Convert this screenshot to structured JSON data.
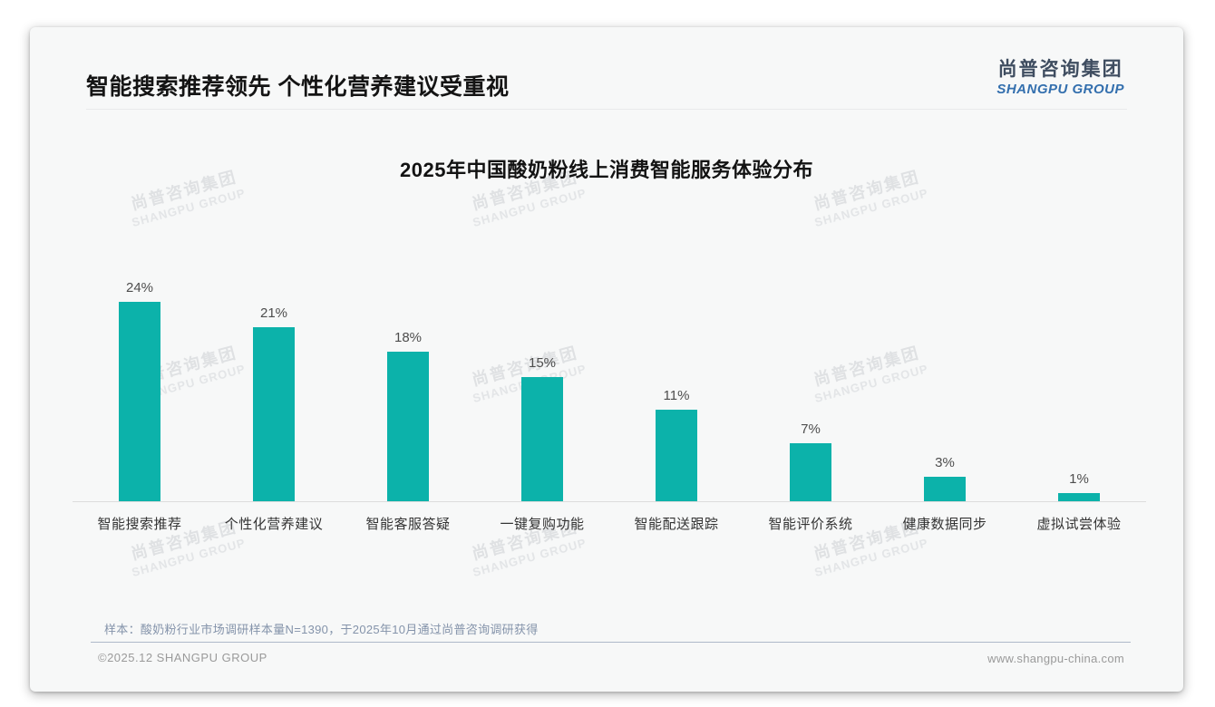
{
  "header": {
    "title": "智能搜索推荐领先 个性化营养建议受重视",
    "logo": {
      "cn": "尚普咨询集团",
      "en": "SHANGPU GROUP"
    }
  },
  "chart_data": {
    "type": "bar",
    "title": "2025年中国酸奶粉线上消费智能服务体验分布",
    "categories": [
      "智能搜索推荐",
      "个性化营养建议",
      "智能客服答疑",
      "一键复购功能",
      "智能配送跟踪",
      "智能评价系统",
      "健康数据同步",
      "虚拟试尝体验"
    ],
    "values": [
      24,
      21,
      18,
      15,
      11,
      7,
      3,
      1
    ],
    "unit": "%",
    "data_labels": true,
    "grid": false,
    "legend": "none",
    "ylim": [
      0,
      26
    ],
    "bar_color": "#0cb2aa",
    "axis_color": "#dcdcdc"
  },
  "watermark": {
    "cn": "尚普咨询集团",
    "en": "SHANGPU GROUP"
  },
  "footnote": "样本：酸奶粉行业市场调研样本量N=1390，于2025年10月通过尚普咨询调研获得",
  "footer": {
    "left": "©2025.12 SHANGPU GROUP",
    "right": "www.shangpu-china.com"
  }
}
